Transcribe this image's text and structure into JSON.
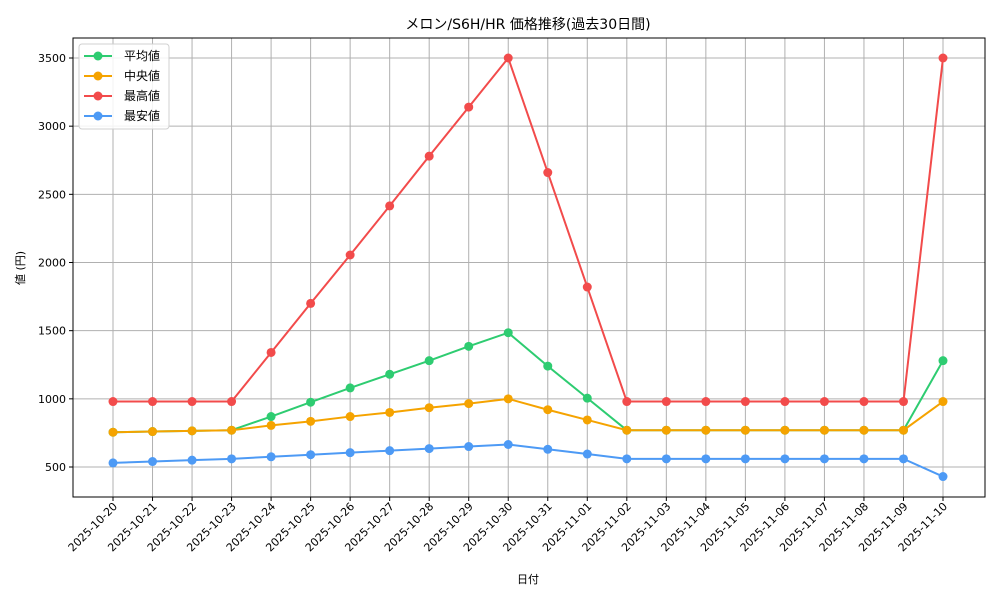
{
  "chart_data": {
    "type": "line",
    "title": "メロン/S6H/HR 価格推移(過去30日間)",
    "xlabel": "日付",
    "ylabel": "値 (円)",
    "ylim": [
      280,
      3650
    ],
    "yticks": [
      500,
      1000,
      1500,
      2000,
      2500,
      3000,
      3500
    ],
    "grid": true,
    "legend_position": "upper left",
    "categories": [
      "2025-10-20",
      "2025-10-21",
      "2025-10-22",
      "2025-10-23",
      "2025-10-24",
      "2025-10-25",
      "2025-10-26",
      "2025-10-27",
      "2025-10-28",
      "2025-10-29",
      "2025-10-30",
      "2025-10-31",
      "2025-11-01",
      "2025-11-02",
      "2025-11-03",
      "2025-11-04",
      "2025-11-05",
      "2025-11-06",
      "2025-11-07",
      "2025-11-08",
      "2025-11-09",
      "2025-11-10"
    ],
    "series": [
      {
        "name": "平均値",
        "color": "#2ecc71",
        "values": [
          755,
          760,
          765,
          770,
          870,
          975,
          1080,
          1180,
          1280,
          1385,
          1485,
          1240,
          1005,
          770,
          770,
          770,
          770,
          770,
          770,
          770,
          770,
          1280
        ]
      },
      {
        "name": "中央値",
        "color": "#f5a300",
        "values": [
          755,
          760,
          765,
          770,
          805,
          835,
          870,
          900,
          935,
          965,
          1000,
          920,
          845,
          770,
          770,
          770,
          770,
          770,
          770,
          770,
          770,
          980
        ]
      },
      {
        "name": "最高値",
        "color": "#f24b4b",
        "values": [
          980,
          980,
          980,
          980,
          1340,
          1700,
          2055,
          2415,
          2780,
          3140,
          3500,
          2660,
          1820,
          980,
          980,
          980,
          980,
          980,
          980,
          980,
          980,
          3500
        ]
      },
      {
        "name": "最安値",
        "color": "#4d9af5",
        "values": [
          530,
          540,
          550,
          560,
          575,
          590,
          605,
          620,
          635,
          650,
          665,
          630,
          595,
          560,
          560,
          560,
          560,
          560,
          560,
          560,
          560,
          430
        ]
      }
    ]
  }
}
